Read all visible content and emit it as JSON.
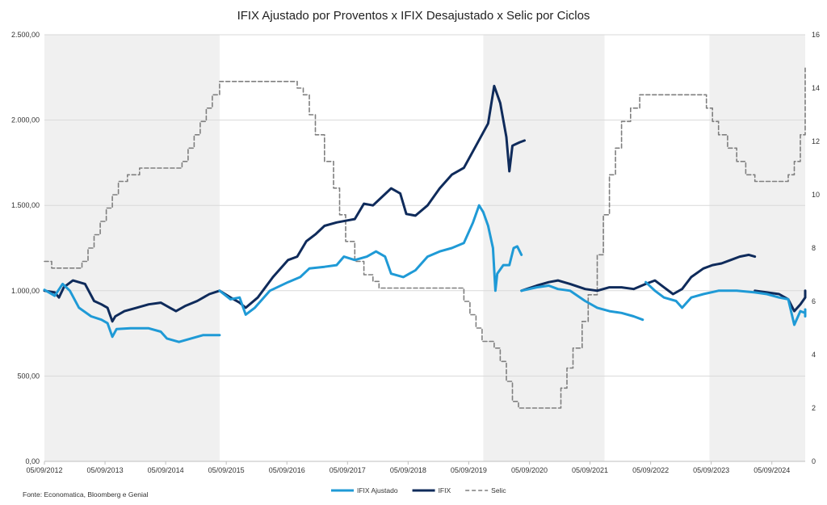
{
  "chart_data": {
    "type": "line",
    "title": "IFIX Ajustado por Proventos x IFIX Desajustado x Selic por Ciclos",
    "source": "Fonte: Economatica, Bloomberg e Genial",
    "x_tick_labels": [
      "05/09/2012",
      "05/09/2013",
      "05/09/2014",
      "05/09/2015",
      "05/09/2016",
      "05/09/2017",
      "05/09/2018",
      "05/09/2019",
      "05/09/2020",
      "05/09/2021",
      "05/09/2022",
      "05/09/2023",
      "05/09/2024"
    ],
    "xlim": [
      2012.68,
      2025.23
    ],
    "y_left": {
      "min": 0,
      "max": 2500,
      "step": 500,
      "tick_labels": [
        "0,00",
        "500,00",
        "1.000,00",
        "1.500,00",
        "2.000,00",
        "2.500,00"
      ]
    },
    "y_right": {
      "min": 0,
      "max": 16,
      "step": 2,
      "tick_labels": [
        "0",
        "2",
        "4",
        "6",
        "8",
        "10",
        "12",
        "14",
        "16"
      ]
    },
    "shaded_periods": [
      [
        2012.68,
        2015.57
      ],
      [
        2019.92,
        2021.92
      ],
      [
        2023.65,
        2025.23
      ]
    ],
    "grid": "horizontal",
    "legend_position": "bottom-center",
    "series": [
      {
        "name": "IFIX Ajustado",
        "axis": "left",
        "color": "#1f9ad6",
        "style": "solid",
        "segments": [
          [
            [
              2012.68,
              1005
            ],
            [
              2012.85,
              970
            ],
            [
              2012.98,
              1040
            ],
            [
              2013.1,
              1000
            ],
            [
              2013.25,
              900
            ],
            [
              2013.45,
              850
            ],
            [
              2013.62,
              830
            ],
            [
              2013.72,
              810
            ],
            [
              2013.8,
              730
            ],
            [
              2013.87,
              775
            ],
            [
              2014.1,
              780
            ],
            [
              2014.4,
              780
            ],
            [
              2014.6,
              760
            ],
            [
              2014.7,
              720
            ],
            [
              2014.9,
              700
            ],
            [
              2015.1,
              720
            ],
            [
              2015.3,
              740
            ],
            [
              2015.57,
              740
            ]
          ],
          [
            [
              2015.57,
              1000
            ],
            [
              2015.75,
              950
            ],
            [
              2015.9,
              960
            ],
            [
              2016.0,
              860
            ],
            [
              2016.15,
              900
            ],
            [
              2016.4,
              1000
            ],
            [
              2016.7,
              1050
            ],
            [
              2016.9,
              1080
            ],
            [
              2017.05,
              1130
            ],
            [
              2017.3,
              1140
            ],
            [
              2017.5,
              1150
            ],
            [
              2017.62,
              1200
            ],
            [
              2017.8,
              1180
            ],
            [
              2018.0,
              1200
            ],
            [
              2018.15,
              1230
            ],
            [
              2018.3,
              1200
            ],
            [
              2018.4,
              1100
            ],
            [
              2018.6,
              1080
            ],
            [
              2018.8,
              1120
            ],
            [
              2019.0,
              1200
            ],
            [
              2019.2,
              1230
            ],
            [
              2019.4,
              1250
            ],
            [
              2019.6,
              1280
            ],
            [
              2019.75,
              1400
            ],
            [
              2019.85,
              1500
            ],
            [
              2019.92,
              1460
            ],
            [
              2020.0,
              1380
            ],
            [
              2020.08,
              1250
            ],
            [
              2020.12,
              1000
            ],
            [
              2020.15,
              1100
            ],
            [
              2020.25,
              1150
            ],
            [
              2020.35,
              1150
            ],
            [
              2020.42,
              1250
            ],
            [
              2020.48,
              1260
            ],
            [
              2020.55,
              1210
            ]
          ],
          [
            [
              2020.55,
              1000
            ],
            [
              2020.8,
              1020
            ],
            [
              2021.0,
              1030
            ],
            [
              2021.15,
              1010
            ],
            [
              2021.35,
              1000
            ],
            [
              2021.6,
              940
            ],
            [
              2021.8,
              900
            ],
            [
              2022.0,
              880
            ],
            [
              2022.2,
              870
            ],
            [
              2022.4,
              850
            ],
            [
              2022.55,
              830
            ]
          ],
          [
            [
              2022.6,
              1050
            ],
            [
              2022.75,
              1000
            ],
            [
              2022.9,
              960
            ],
            [
              2023.1,
              940
            ],
            [
              2023.2,
              900
            ],
            [
              2023.35,
              960
            ],
            [
              2023.55,
              980
            ],
            [
              2023.8,
              1000
            ],
            [
              2024.1,
              1000
            ],
            [
              2024.4,
              990
            ],
            [
              2024.6,
              980
            ],
            [
              2024.8,
              960
            ],
            [
              2024.95,
              950
            ],
            [
              2025.05,
              800
            ],
            [
              2025.15,
              880
            ],
            [
              2025.25,
              870
            ],
            [
              2025.35,
              850
            ],
            [
              2025.45,
              890
            ],
            [
              2025.55,
              880
            ]
          ]
        ]
      },
      {
        "name": "IFIX",
        "axis": "left",
        "color": "#0f2b5b",
        "style": "solid",
        "segments": [
          [
            [
              2012.68,
              1000
            ],
            [
              2012.85,
              990
            ],
            [
              2012.92,
              960
            ],
            [
              2013.0,
              1020
            ],
            [
              2013.15,
              1060
            ],
            [
              2013.35,
              1040
            ],
            [
              2013.5,
              940
            ],
            [
              2013.62,
              920
            ],
            [
              2013.72,
              900
            ],
            [
              2013.8,
              820
            ],
            [
              2013.85,
              850
            ],
            [
              2014.0,
              880
            ],
            [
              2014.2,
              900
            ],
            [
              2014.4,
              920
            ],
            [
              2014.6,
              930
            ],
            [
              2014.75,
              900
            ],
            [
              2014.85,
              880
            ],
            [
              2015.0,
              910
            ],
            [
              2015.2,
              940
            ],
            [
              2015.4,
              980
            ],
            [
              2015.57,
              1000
            ]
          ],
          [
            [
              2015.57,
              1000
            ],
            [
              2015.75,
              960
            ],
            [
              2015.9,
              930
            ],
            [
              2016.0,
              900
            ],
            [
              2016.2,
              960
            ],
            [
              2016.45,
              1080
            ],
            [
              2016.7,
              1180
            ],
            [
              2016.85,
              1200
            ],
            [
              2017.0,
              1290
            ],
            [
              2017.15,
              1330
            ],
            [
              2017.3,
              1380
            ],
            [
              2017.5,
              1400
            ],
            [
              2017.65,
              1410
            ],
            [
              2017.8,
              1420
            ],
            [
              2017.95,
              1510
            ],
            [
              2018.1,
              1500
            ],
            [
              2018.25,
              1550
            ],
            [
              2018.4,
              1600
            ],
            [
              2018.55,
              1570
            ],
            [
              2018.65,
              1450
            ],
            [
              2018.8,
              1440
            ],
            [
              2019.0,
              1500
            ],
            [
              2019.2,
              1600
            ],
            [
              2019.4,
              1680
            ],
            [
              2019.6,
              1720
            ],
            [
              2019.8,
              1850
            ],
            [
              2020.0,
              1980
            ],
            [
              2020.1,
              2200
            ],
            [
              2020.2,
              2100
            ],
            [
              2020.3,
              1900
            ],
            [
              2020.35,
              1700
            ],
            [
              2020.4,
              1850
            ],
            [
              2020.52,
              1870
            ],
            [
              2020.6,
              1880
            ]
          ],
          [
            [
              2020.55,
              1000
            ],
            [
              2020.8,
              1030
            ],
            [
              2021.0,
              1050
            ],
            [
              2021.15,
              1060
            ],
            [
              2021.35,
              1040
            ],
            [
              2021.6,
              1010
            ],
            [
              2021.8,
              1000
            ],
            [
              2022.0,
              1020
            ],
            [
              2022.2,
              1020
            ],
            [
              2022.4,
              1010
            ],
            [
              2022.6,
              1040
            ],
            [
              2022.75,
              1060
            ],
            [
              2022.9,
              1020
            ],
            [
              2023.05,
              980
            ],
            [
              2023.2,
              1010
            ],
            [
              2023.35,
              1080
            ],
            [
              2023.55,
              1130
            ],
            [
              2023.7,
              1150
            ],
            [
              2023.85,
              1160
            ],
            [
              2024.0,
              1180
            ],
            [
              2024.15,
              1200
            ],
            [
              2024.3,
              1210
            ],
            [
              2024.4,
              1200
            ]
          ],
          [
            [
              2024.4,
              1000
            ],
            [
              2024.6,
              990
            ],
            [
              2024.8,
              980
            ],
            [
              2024.95,
              950
            ],
            [
              2025.05,
              880
            ],
            [
              2025.15,
              920
            ],
            [
              2025.25,
              960
            ],
            [
              2025.35,
              970
            ],
            [
              2025.45,
              1000
            ],
            [
              2025.55,
              980
            ]
          ]
        ]
      },
      {
        "name": "Selic",
        "axis": "right",
        "color": "#7f7f7f",
        "style": "dashed",
        "step": true,
        "points": [
          [
            2012.68,
            7.5
          ],
          [
            2012.8,
            7.25
          ],
          [
            2013.3,
            7.5
          ],
          [
            2013.4,
            8.0
          ],
          [
            2013.5,
            8.5
          ],
          [
            2013.6,
            9.0
          ],
          [
            2013.7,
            9.5
          ],
          [
            2013.8,
            10.0
          ],
          [
            2013.9,
            10.5
          ],
          [
            2014.05,
            10.75
          ],
          [
            2014.25,
            11.0
          ],
          [
            2014.95,
            11.25
          ],
          [
            2015.05,
            11.75
          ],
          [
            2015.15,
            12.25
          ],
          [
            2015.25,
            12.75
          ],
          [
            2015.35,
            13.25
          ],
          [
            2015.45,
            13.75
          ],
          [
            2015.57,
            14.25
          ],
          [
            2016.85,
            14.0
          ],
          [
            2016.95,
            13.75
          ],
          [
            2017.05,
            13.0
          ],
          [
            2017.15,
            12.25
          ],
          [
            2017.3,
            11.25
          ],
          [
            2017.45,
            10.25
          ],
          [
            2017.55,
            9.25
          ],
          [
            2017.65,
            8.25
          ],
          [
            2017.8,
            7.5
          ],
          [
            2017.95,
            7.0
          ],
          [
            2018.1,
            6.75
          ],
          [
            2018.2,
            6.5
          ],
          [
            2019.6,
            6.0
          ],
          [
            2019.7,
            5.5
          ],
          [
            2019.8,
            5.0
          ],
          [
            2019.9,
            4.5
          ],
          [
            2020.1,
            4.25
          ],
          [
            2020.2,
            3.75
          ],
          [
            2020.3,
            3.0
          ],
          [
            2020.4,
            2.25
          ],
          [
            2020.5,
            2.0
          ],
          [
            2021.2,
            2.75
          ],
          [
            2021.3,
            3.5
          ],
          [
            2021.4,
            4.25
          ],
          [
            2021.55,
            5.25
          ],
          [
            2021.65,
            6.25
          ],
          [
            2021.8,
            7.75
          ],
          [
            2021.9,
            9.25
          ],
          [
            2022.0,
            10.75
          ],
          [
            2022.1,
            11.75
          ],
          [
            2022.2,
            12.75
          ],
          [
            2022.35,
            13.25
          ],
          [
            2022.5,
            13.75
          ],
          [
            2023.6,
            13.25
          ],
          [
            2023.7,
            12.75
          ],
          [
            2023.8,
            12.25
          ],
          [
            2023.95,
            11.75
          ],
          [
            2024.1,
            11.25
          ],
          [
            2024.25,
            10.75
          ],
          [
            2024.4,
            10.5
          ],
          [
            2024.95,
            10.75
          ],
          [
            2025.05,
            11.25
          ],
          [
            2025.15,
            12.25
          ],
          [
            2025.3,
            13.25
          ],
          [
            2025.4,
            14.25
          ],
          [
            2025.5,
            14.75
          ],
          [
            2025.6,
            14.75
          ]
        ]
      }
    ]
  }
}
